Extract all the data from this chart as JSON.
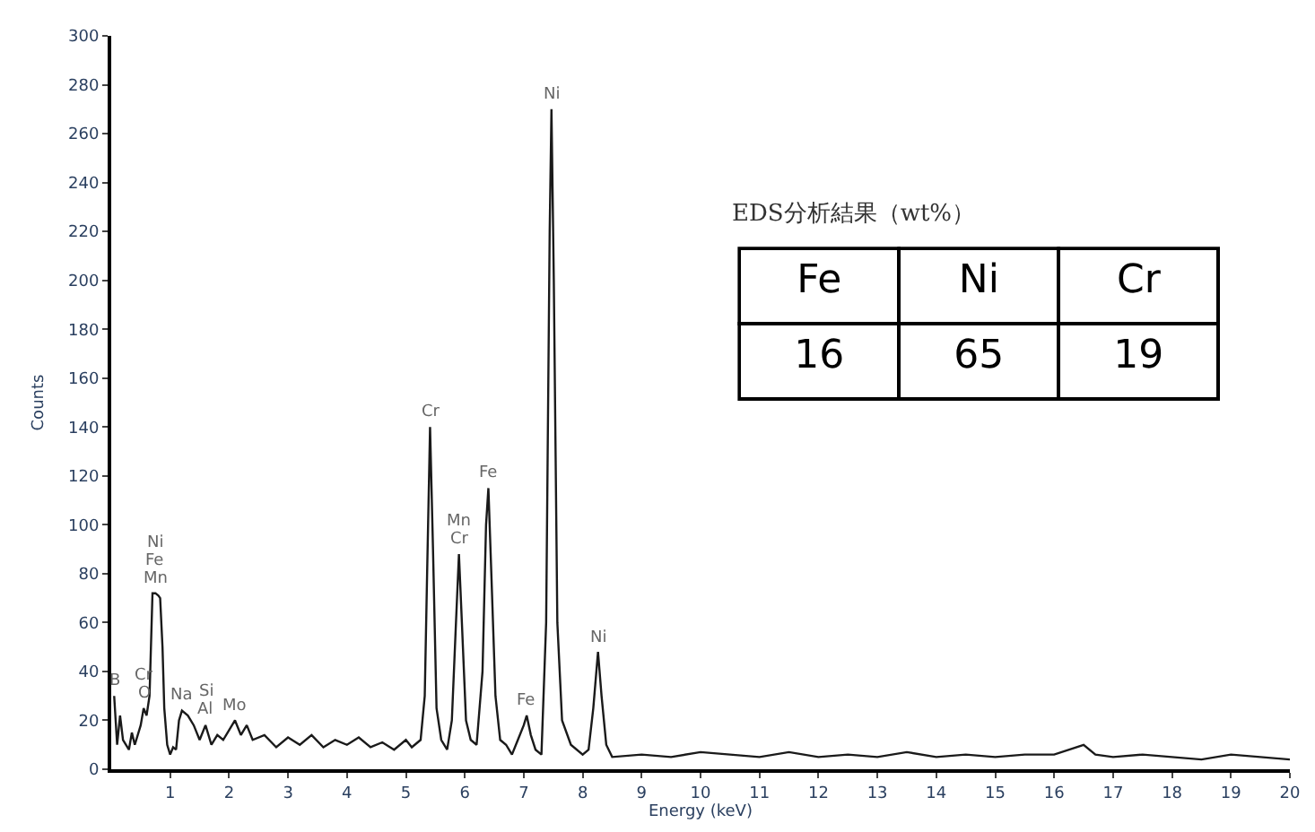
{
  "chart_data": {
    "type": "line",
    "xlabel": "Energy (keV)",
    "ylabel": "Counts",
    "xlim": [
      0,
      20
    ],
    "xticks": [
      1,
      2,
      3,
      4,
      5,
      6,
      7,
      8,
      9,
      10,
      11,
      12,
      13,
      14,
      15,
      16,
      17,
      18,
      19,
      20
    ],
    "ylim": [
      0,
      300
    ],
    "yticks": [
      0,
      20,
      40,
      60,
      80,
      100,
      120,
      140,
      160,
      180,
      200,
      220,
      240,
      260,
      280,
      300
    ],
    "legend": false,
    "marker": "none",
    "line_style": "solid",
    "series": [
      {
        "color": "#1a1a1a",
        "x": [
          0.05,
          0.1,
          0.15,
          0.2,
          0.3,
          0.35,
          0.4,
          0.5,
          0.55,
          0.6,
          0.65,
          0.7,
          0.75,
          0.8,
          0.83,
          0.87,
          0.9,
          0.95,
          1.0,
          1.05,
          1.1,
          1.15,
          1.2,
          1.3,
          1.4,
          1.5,
          1.6,
          1.7,
          1.8,
          1.9,
          2.0,
          2.1,
          2.2,
          2.3,
          2.4,
          2.6,
          2.8,
          3.0,
          3.2,
          3.4,
          3.6,
          3.8,
          4.0,
          4.2,
          4.4,
          4.6,
          4.8,
          5.0,
          5.1,
          5.25,
          5.32,
          5.36,
          5.41,
          5.46,
          5.52,
          5.6,
          5.7,
          5.78,
          5.85,
          5.9,
          5.95,
          6.02,
          6.1,
          6.2,
          6.3,
          6.36,
          6.4,
          6.45,
          6.52,
          6.6,
          6.7,
          6.8,
          6.9,
          7.0,
          7.05,
          7.12,
          7.2,
          7.3,
          7.38,
          7.44,
          7.47,
          7.51,
          7.57,
          7.65,
          7.8,
          8.0,
          8.1,
          8.18,
          8.26,
          8.32,
          8.4,
          8.5,
          9,
          9.5,
          10,
          10.5,
          11,
          11.5,
          12,
          12.5,
          13,
          13.5,
          14,
          14.5,
          15,
          15.5,
          16,
          16.5,
          16.7,
          17,
          17.5,
          18,
          18.5,
          19,
          19.5,
          20
        ],
        "values": [
          30,
          10,
          22,
          12,
          8,
          15,
          10,
          18,
          25,
          22,
          30,
          72,
          72,
          71,
          70,
          50,
          25,
          10,
          6,
          9,
          8,
          20,
          24,
          22,
          18,
          12,
          18,
          10,
          14,
          12,
          16,
          20,
          14,
          18,
          12,
          14,
          9,
          13,
          10,
          14,
          9,
          12,
          10,
          13,
          9,
          11,
          8,
          12,
          9,
          12,
          30,
          80,
          140,
          90,
          25,
          12,
          8,
          20,
          60,
          88,
          60,
          20,
          12,
          10,
          40,
          100,
          115,
          80,
          30,
          12,
          10,
          6,
          12,
          18,
          22,
          14,
          8,
          6,
          60,
          220,
          270,
          200,
          60,
          20,
          10,
          6,
          8,
          25,
          48,
          30,
          10,
          5,
          6,
          5,
          7,
          6,
          5,
          7,
          5,
          6,
          5,
          7,
          5,
          6,
          5,
          6,
          6,
          10,
          6,
          5,
          6,
          5,
          4,
          6,
          5,
          4
        ]
      }
    ],
    "annotations": [
      {
        "text": "B",
        "x": 0.05,
        "y": 30
      },
      {
        "text": "O",
        "x": 0.55,
        "y": 25
      },
      {
        "text": "Cr",
        "x": 0.55,
        "y": 25
      },
      {
        "text": "Mn",
        "x": 0.75,
        "y": 72
      },
      {
        "text": "Fe",
        "x": 0.75,
        "y": 72
      },
      {
        "text": "Ni",
        "x": 0.75,
        "y": 72
      },
      {
        "text": "Na",
        "x": 1.2,
        "y": 24
      },
      {
        "text": "Al",
        "x": 1.6,
        "y": 18
      },
      {
        "text": "Si",
        "x": 1.6,
        "y": 18
      },
      {
        "text": "Mo",
        "x": 2.1,
        "y": 20
      },
      {
        "text": "Cr",
        "x": 5.41,
        "y": 140
      },
      {
        "text": "Cr",
        "x": 5.9,
        "y": 88
      },
      {
        "text": "Mn",
        "x": 5.9,
        "y": 88
      },
      {
        "text": "Fe",
        "x": 6.4,
        "y": 115
      },
      {
        "text": "Fe",
        "x": 7.05,
        "y": 22
      },
      {
        "text": "Ni",
        "x": 7.47,
        "y": 270
      },
      {
        "text": "Ni",
        "x": 8.26,
        "y": 48
      },
      "EDS分析結果（wt%）",
      "Fe",
      "Ni",
      "Cr",
      "16",
      "65",
      "19"
    ]
  }
}
